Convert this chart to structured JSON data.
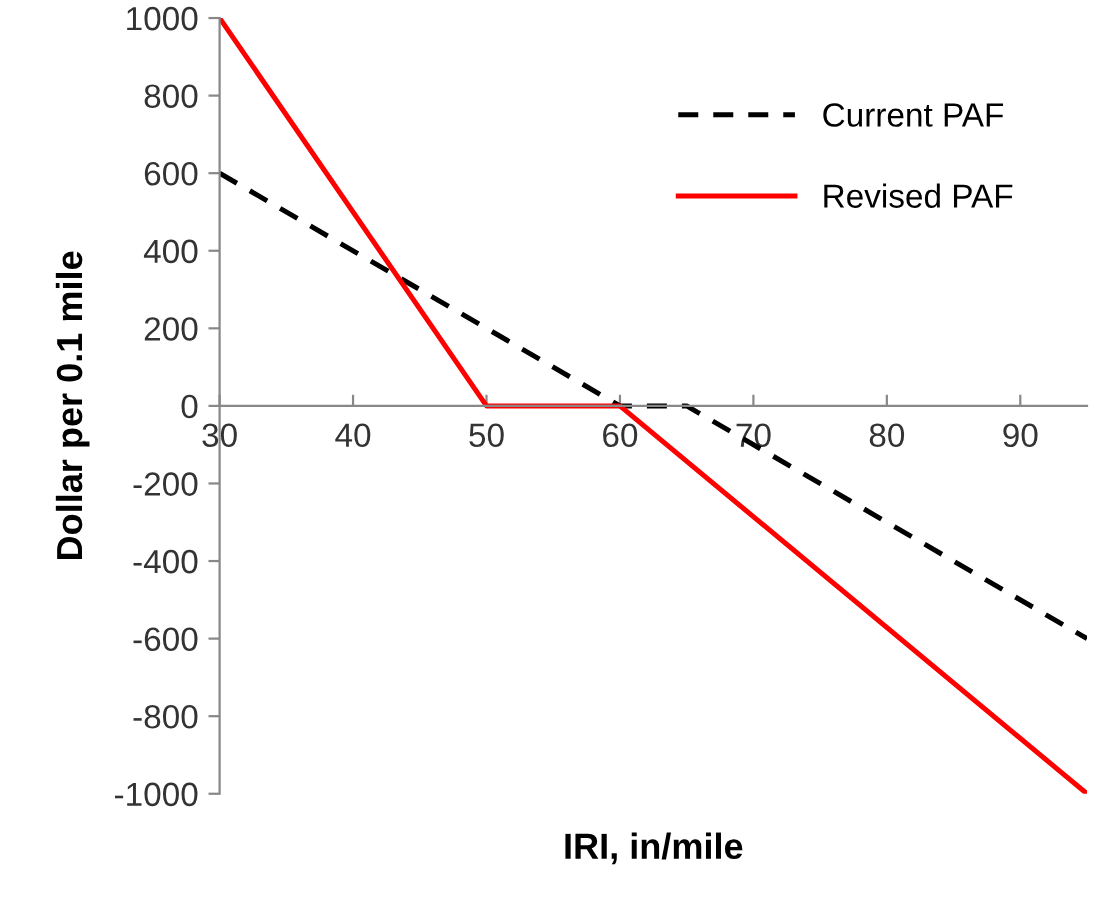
{
  "chart_data": {
    "type": "line",
    "xlabel": "IRI, in/mile",
    "ylabel": "Dollar per 0.1 mile",
    "series": [
      {
        "name": "Current PAF",
        "color": "#000000",
        "line_style": "dashed",
        "x": [
          30,
          60,
          65,
          95
        ],
        "values": [
          600,
          0,
          0,
          -600
        ]
      },
      {
        "name": "Revised PAF",
        "color": "#ff0000",
        "line_style": "solid",
        "x": [
          30,
          50,
          60,
          95
        ],
        "values": [
          1000,
          0,
          0,
          -1000
        ]
      }
    ],
    "xlim": [
      30,
      95
    ],
    "xticks": [
      30,
      40,
      50,
      60,
      70,
      80,
      90
    ],
    "ylim": [
      -1000,
      1000
    ],
    "yticks": [
      -1000,
      -800,
      -600,
      -400,
      -200,
      0,
      200,
      400,
      600,
      800,
      1000
    ],
    "grid": false,
    "legend": "top right",
    "marker": "none"
  }
}
